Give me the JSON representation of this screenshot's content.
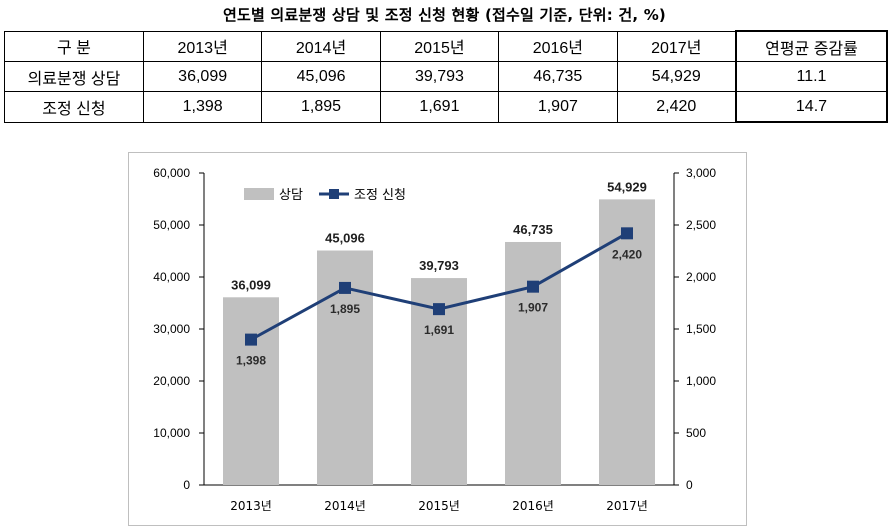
{
  "title": "연도별 의료분쟁 상담 및 조정 신청 현황 (접수일 기준, 단위: 건, %)",
  "table": {
    "header": [
      "구  분",
      "2013년",
      "2014년",
      "2015년",
      "2016년",
      "2017년",
      "연평균 증감률"
    ],
    "rows": [
      [
        "의료분쟁 상담",
        "36,099",
        "45,096",
        "39,793",
        "46,735",
        "54,929",
        "11.1"
      ],
      [
        "조정 신청",
        "1,398",
        "1,895",
        "1,691",
        "1,907",
        "2,420",
        "14.7"
      ]
    ]
  },
  "colors": {
    "bar": "#c0c0c0",
    "line": "#1f3f77",
    "grid": "#d9d9d9"
  },
  "chart_data": {
    "type": "bar",
    "categories": [
      "2013년",
      "2014년",
      "2015년",
      "2016년",
      "2017년"
    ],
    "series": [
      {
        "name": "상담",
        "type": "bar",
        "axis": "left",
        "values": [
          36099,
          45096,
          39793,
          46735,
          54929
        ],
        "labels": [
          "36,099",
          "45,096",
          "39,793",
          "46,735",
          "54,929"
        ]
      },
      {
        "name": "조정 신청",
        "type": "line",
        "axis": "right",
        "values": [
          1398,
          1895,
          1691,
          1907,
          2420
        ],
        "labels": [
          "1,398",
          "1,895",
          "1,691",
          "1,907",
          "2,420"
        ]
      }
    ],
    "ylim": [
      0,
      60000
    ],
    "y_ticks": [
      "0",
      "10,000",
      "20,000",
      "30,000",
      "40,000",
      "50,000",
      "60,000"
    ],
    "y2lim": [
      0,
      3000
    ],
    "y2_ticks": [
      "0",
      "500",
      "1,000",
      "1,500",
      "2,000",
      "2,500",
      "3,000"
    ],
    "legend": "top-left",
    "grid": false
  }
}
